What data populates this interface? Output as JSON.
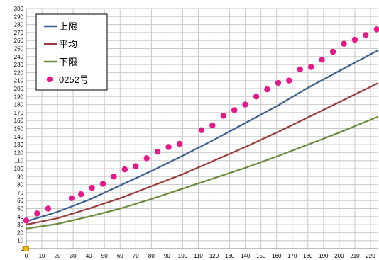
{
  "chart_data": {
    "type": "line",
    "title": "",
    "xlabel": "",
    "ylabel": "",
    "xlim": [
      0,
      225
    ],
    "ylim": [
      0,
      300
    ],
    "x_ticks": [
      0,
      10,
      20,
      30,
      40,
      50,
      60,
      70,
      80,
      90,
      100,
      110,
      120,
      130,
      140,
      150,
      160,
      170,
      180,
      190,
      200,
      210,
      220
    ],
    "y_ticks": [
      0,
      10,
      20,
      30,
      40,
      50,
      60,
      70,
      80,
      90,
      100,
      110,
      120,
      130,
      140,
      150,
      160,
      170,
      180,
      190,
      200,
      210,
      220,
      230,
      240,
      250,
      260,
      270,
      280,
      290,
      300
    ],
    "grid": true,
    "legend_position": "top-left",
    "series": [
      {
        "name": "上限",
        "kind": "line",
        "color": "#3a5f8f",
        "x": [
          0,
          20,
          40,
          60,
          80,
          100,
          120,
          140,
          160,
          180,
          200,
          225
        ],
        "y": [
          34,
          46,
          61,
          79,
          97,
          116,
          136,
          157,
          178,
          201,
          222,
          248
        ]
      },
      {
        "name": "平均",
        "kind": "line",
        "color": "#9b3a3a",
        "x": [
          0,
          20,
          40,
          60,
          80,
          100,
          120,
          140,
          160,
          180,
          200,
          225
        ],
        "y": [
          30,
          38,
          50,
          63,
          78,
          93,
          110,
          127,
          145,
          164,
          183,
          207
        ]
      },
      {
        "name": "下限",
        "kind": "line",
        "color": "#6b8a3a",
        "x": [
          0,
          20,
          40,
          60,
          80,
          100,
          120,
          140,
          160,
          180,
          200,
          225
        ],
        "y": [
          25,
          31,
          40,
          50,
          62,
          75,
          88,
          101,
          115,
          130,
          145,
          165
        ]
      },
      {
        "name": "0252号",
        "kind": "scatter",
        "color": "#e6198a",
        "x": [
          0,
          7,
          14,
          29,
          35,
          42,
          49,
          56,
          63,
          70,
          77,
          84,
          91,
          98,
          112,
          119,
          126,
          133,
          140,
          147,
          154,
          161,
          168,
          175,
          182,
          189,
          196,
          203,
          210,
          217,
          224
        ],
        "y": [
          35,
          44,
          50,
          63,
          68,
          76,
          81,
          90,
          99,
          103,
          113,
          121,
          127,
          131,
          148,
          154,
          166,
          173,
          180,
          190,
          199,
          207,
          210,
          224,
          227,
          236,
          246,
          256,
          261,
          267,
          274
        ]
      }
    ],
    "marker": {
      "x": 0,
      "y": 0,
      "color": "#f5b800"
    }
  }
}
